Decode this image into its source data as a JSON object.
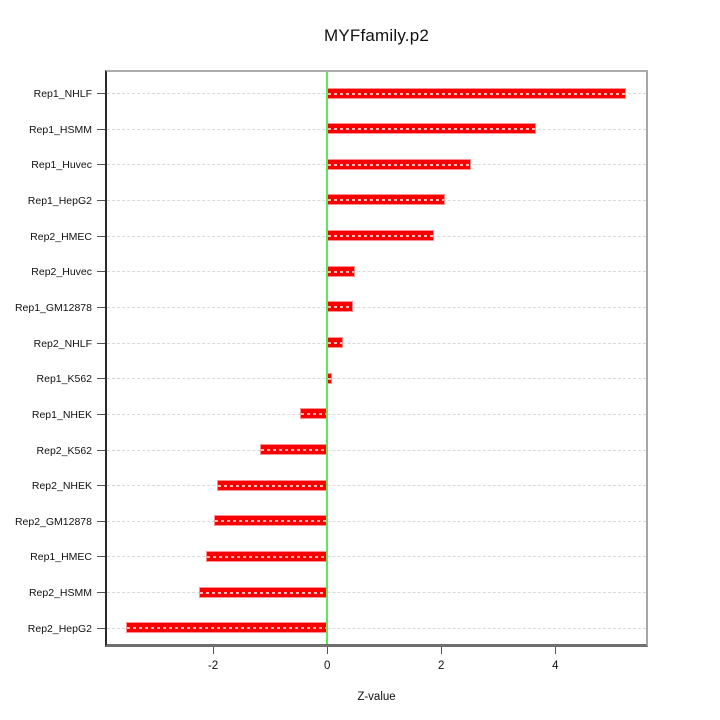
{
  "title": "MYFfamily.p2",
  "chart_data": {
    "type": "bar",
    "orientation": "horizontal",
    "title": "MYFfamily.p2",
    "xlabel": "Z-value",
    "ylabel": "",
    "categories": [
      "Rep1_NHLF",
      "Rep1_HSMM",
      "Rep1_Huvec",
      "Rep1_HepG2",
      "Rep2_HMEC",
      "Rep2_Huvec",
      "Rep1_GM12878",
      "Rep2_NHLF",
      "Rep1_K562",
      "Rep1_NHEK",
      "Rep2_K562",
      "Rep2_NHEK",
      "Rep2_GM12878",
      "Rep1_HMEC",
      "Rep2_HSMM",
      "Rep2_HepG2"
    ],
    "values": [
      5.24,
      3.67,
      2.53,
      2.06,
      1.87,
      0.49,
      0.45,
      0.28,
      0.08,
      -0.48,
      -1.18,
      -1.94,
      -1.99,
      -2.12,
      -2.24,
      -3.53
    ],
    "xticks": [
      -2,
      0,
      2,
      4
    ],
    "xtick_labels": [
      "-2",
      "0",
      "2",
      "4"
    ],
    "xlim": [
      -3.86,
      5.59
    ],
    "grid": true,
    "grid_line_style": "dashed",
    "legend": "none",
    "colors": {
      "bar_fill": "#f80000",
      "bar_border": "#ff9090",
      "bar_inner_dash": "#ffb3b3",
      "zero_line": "#5ce85c",
      "gridline": "#d9d9d9",
      "box_border": "#a6a6a6",
      "axis": "#555555",
      "text": "#111111",
      "background": "#ffffff"
    }
  }
}
